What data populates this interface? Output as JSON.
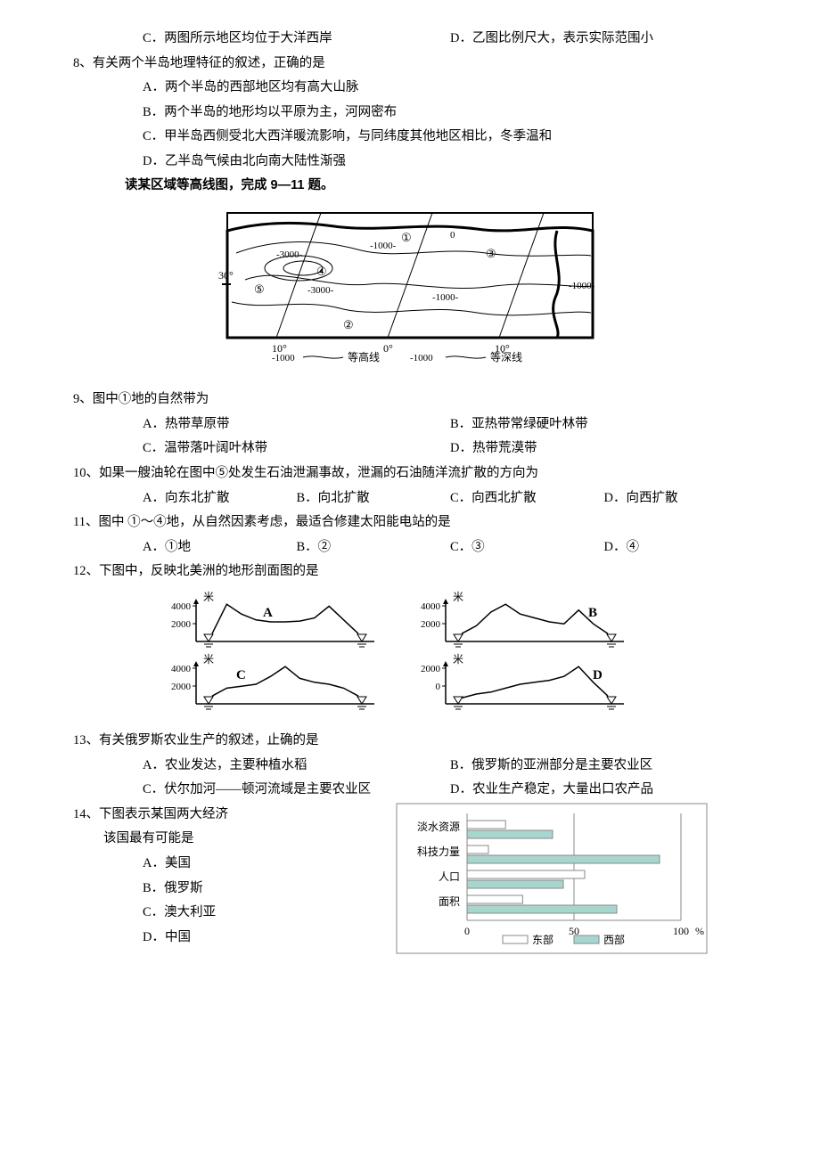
{
  "pre": {
    "optC": "C．两图所示地区均位于大洋西岸",
    "optD": "D．乙图比例尺大，表示实际范围小"
  },
  "q8": {
    "stem": "8、有关两个半岛地理特征的叙述，正确的是",
    "A": "A．两个半岛的西部地区均有高大山脉",
    "B": "B．两个半岛的地形均以平原为主，河网密布",
    "C": "C．甲半岛西侧受北大西洋暖流影响，与同纬度其他地区相比，冬季温和",
    "D": "D．乙半岛气候由北向南大陆性渐强"
  },
  "intro911": "读某区域等高线图，完成 9—11 题。",
  "q9": {
    "stem": "9、图中①地的自然带为",
    "A": "A．热带草原带",
    "B": "B．亚热带常绿硬叶林带",
    "C": "C．温带落叶阔叶林带",
    "D": "D．热带荒漠带"
  },
  "q10": {
    "stem": "10、如果一艘油轮在图中⑤处发生石油泄漏事故，泄漏的石油随洋流扩散的方向为",
    "A": "A．向东北扩散",
    "B": "B．向北扩散",
    "C": "C．向西北扩散",
    "D": "D．向西扩散"
  },
  "q11": {
    "stem": "11、图中 ①～④地，从自然因素考虑，最适合修建太阳能电站的是",
    "A": "A．①地",
    "B": "B．②",
    "C": "C．③",
    "D": "D．④"
  },
  "q12": {
    "stem": "12、下图中，反映北美洲的地形剖面图的是"
  },
  "q13": {
    "stem": "13、有关俄罗斯农业生产的叙述，止确的是",
    "A": "A．农业发达，主要种植水稻",
    "B": "B．俄罗斯的亚洲部分是主要农业区",
    "C": "C．伏尔加河——顿河流域是主要农业区",
    "D": "D．农业生产稳定，大量出口农产品"
  },
  "q14": {
    "stem_prefix": "14、下图表示某国两大经济",
    "stem_suffix": "该国最有可能是",
    "A": "A．美国",
    "B": "B．俄罗斯",
    "C": "C．澳大利亚",
    "D": "D．中国"
  },
  "map911": {
    "contour_label": "等高线",
    "depth_label": "等深线",
    "lon_labels": [
      "10°",
      "0°",
      "10°"
    ],
    "lat_label": "30°",
    "contour_values": [
      "3000",
      "1000",
      "0",
      "-1000"
    ],
    "marker_labels": [
      "①",
      "②",
      "③",
      "④",
      "⑤"
    ],
    "stroke": "#000000",
    "bg": "#ffffff"
  },
  "profiles": {
    "ylabel": "米",
    "yticks_ab_c": [
      "4000",
      "2000"
    ],
    "yticks_d": [
      "2000",
      "0"
    ],
    "labels": [
      "A",
      "B",
      "C",
      "D"
    ],
    "stroke": "#000000",
    "series": {
      "A": [
        0.2,
        0.95,
        0.7,
        0.55,
        0.5,
        0.5,
        0.52,
        0.6,
        0.9,
        0.55,
        0.2
      ],
      "B": [
        0.2,
        0.4,
        0.75,
        0.95,
        0.7,
        0.6,
        0.5,
        0.45,
        0.8,
        0.45,
        0.2
      ],
      "C": [
        0.2,
        0.4,
        0.45,
        0.5,
        0.7,
        0.95,
        0.65,
        0.55,
        0.5,
        0.4,
        0.2
      ],
      "D": [
        0.15,
        0.25,
        0.3,
        0.4,
        0.5,
        0.55,
        0.6,
        0.7,
        0.95,
        0.55,
        0.2
      ]
    }
  },
  "barChart": {
    "categories": [
      "淡水资源",
      "科技力量",
      "人口",
      "面积"
    ],
    "east_values": [
      18,
      10,
      55,
      26
    ],
    "west_values": [
      40,
      90,
      45,
      70
    ],
    "east_color": "#ffffff",
    "west_color": "#a7d6cf",
    "border_color": "#8a8a8a",
    "axis_color": "#8a8a8a",
    "bg": "#ffffff",
    "xticks": [
      "0",
      "50",
      "100"
    ],
    "xsuffix": "%",
    "legend_east": "东部",
    "legend_west": "西部",
    "font_size": 12
  }
}
